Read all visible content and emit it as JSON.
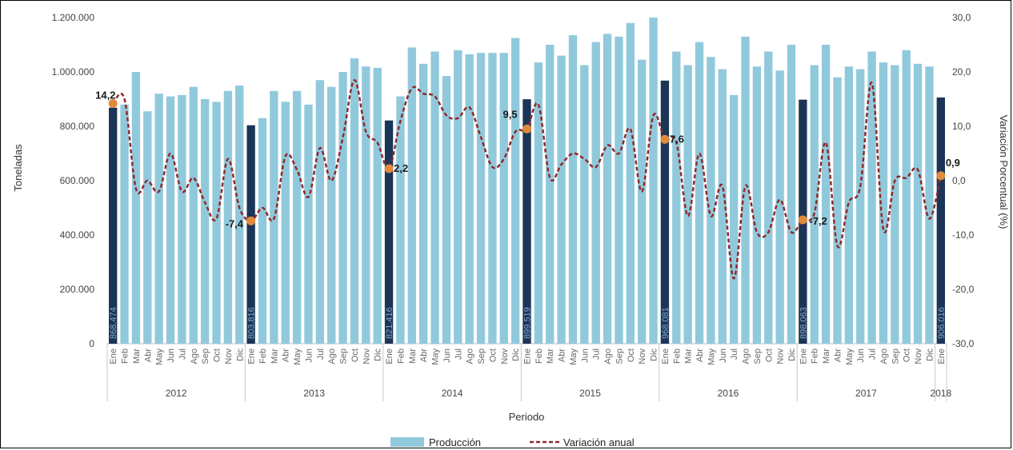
{
  "chart_data": {
    "type": "bar",
    "title": "",
    "xlabel": "Periodo",
    "ylabel": "Toneladas",
    "y2label": "Variación Porcentual (%)",
    "ylim": [
      0,
      1200000
    ],
    "y2lim": [
      -30,
      30
    ],
    "yticks": [
      "0",
      "200.000",
      "400.000",
      "600.000",
      "800.000",
      "1.000.000",
      "1.200.000"
    ],
    "y2ticks": [
      "-30,0",
      "-20,0",
      "-10,0",
      "0,0",
      "10,0",
      "20,0",
      "30,0"
    ],
    "months": [
      "Ene",
      "Feb",
      "Mar",
      "Abr",
      "May",
      "Jun",
      "Jul",
      "Ago",
      "Sep",
      "Oct",
      "Nov",
      "Dic"
    ],
    "years": [
      "2012",
      "2013",
      "2014",
      "2015",
      "2016",
      "2017",
      "2018"
    ],
    "legend": [
      "Producción",
      "Variación anual"
    ],
    "colors": {
      "bar": "#91c9dc",
      "highlight": "#1b3557",
      "line": "#8e2b2b",
      "marker": "#e08a3c"
    },
    "series": [
      {
        "name": "Producción",
        "values": [
          868474,
          880000,
          1000000,
          855000,
          920000,
          910000,
          915000,
          945000,
          900000,
          890000,
          930000,
          950000,
          803816,
          830000,
          930000,
          890000,
          930000,
          880000,
          970000,
          945000,
          1000000,
          1050000,
          1020000,
          1015000,
          821416,
          910000,
          1090000,
          1030000,
          1075000,
          985000,
          1080000,
          1065000,
          1070000,
          1070000,
          1070000,
          1125000,
          899519,
          1035000,
          1100000,
          1060000,
          1135000,
          1025000,
          1110000,
          1140000,
          1130000,
          1180000,
          1045000,
          1200000,
          968081,
          1075000,
          1025000,
          1110000,
          1055000,
          1010000,
          915000,
          1130000,
          1020000,
          1075000,
          1005000,
          1100000,
          898063,
          1025000,
          1100000,
          980000,
          1020000,
          1010000,
          1075000,
          1035000,
          1025000,
          1080000,
          1030000,
          1020000,
          906016
        ]
      },
      {
        "name": "Variación anual",
        "values": [
          14.2,
          15.0,
          -1.5,
          0.0,
          -2.0,
          5.0,
          -2.0,
          0.5,
          -4.0,
          -7.0,
          4.0,
          -5.0,
          -7.4,
          -5.0,
          -7.0,
          4.5,
          2.0,
          -3.0,
          6.0,
          0.0,
          8.0,
          18.5,
          9.0,
          7.0,
          2.2,
          11.0,
          17.0,
          16.0,
          15.5,
          12.0,
          11.5,
          13.5,
          8.0,
          2.5,
          4.0,
          9.0,
          9.5,
          14.0,
          0.5,
          3.0,
          5.0,
          4.0,
          2.5,
          6.5,
          5.0,
          9.5,
          -2.0,
          12.0,
          7.6,
          7.0,
          -6.5,
          5.0,
          -6.5,
          -1.0,
          -18.0,
          -1.0,
          -9.5,
          -9.5,
          -3.5,
          -9.5,
          -7.2,
          -6.0,
          7.0,
          -12.0,
          -4.0,
          -1.0,
          18.0,
          -9.0,
          0.0,
          0.5,
          2.0,
          -7.0,
          0.9
        ]
      }
    ],
    "bar_labels": [
      {
        "index": 0,
        "text": "868.474"
      },
      {
        "index": 12,
        "text": "803.816"
      },
      {
        "index": 24,
        "text": "821.416"
      },
      {
        "index": 36,
        "text": "899.519"
      },
      {
        "index": 48,
        "text": "968.081"
      },
      {
        "index": 60,
        "text": "898.063"
      },
      {
        "index": 72,
        "text": "906.016"
      }
    ],
    "point_labels": [
      {
        "index": 0,
        "text": "14,2"
      },
      {
        "index": 12,
        "text": "-7,4"
      },
      {
        "index": 24,
        "text": "2,2"
      },
      {
        "index": 36,
        "text": "9,5"
      },
      {
        "index": 48,
        "text": "7,6"
      },
      {
        "index": 60,
        "text": "-7,2"
      },
      {
        "index": 72,
        "text": "0,9"
      }
    ],
    "grid": false,
    "legend_position": "bottom"
  }
}
